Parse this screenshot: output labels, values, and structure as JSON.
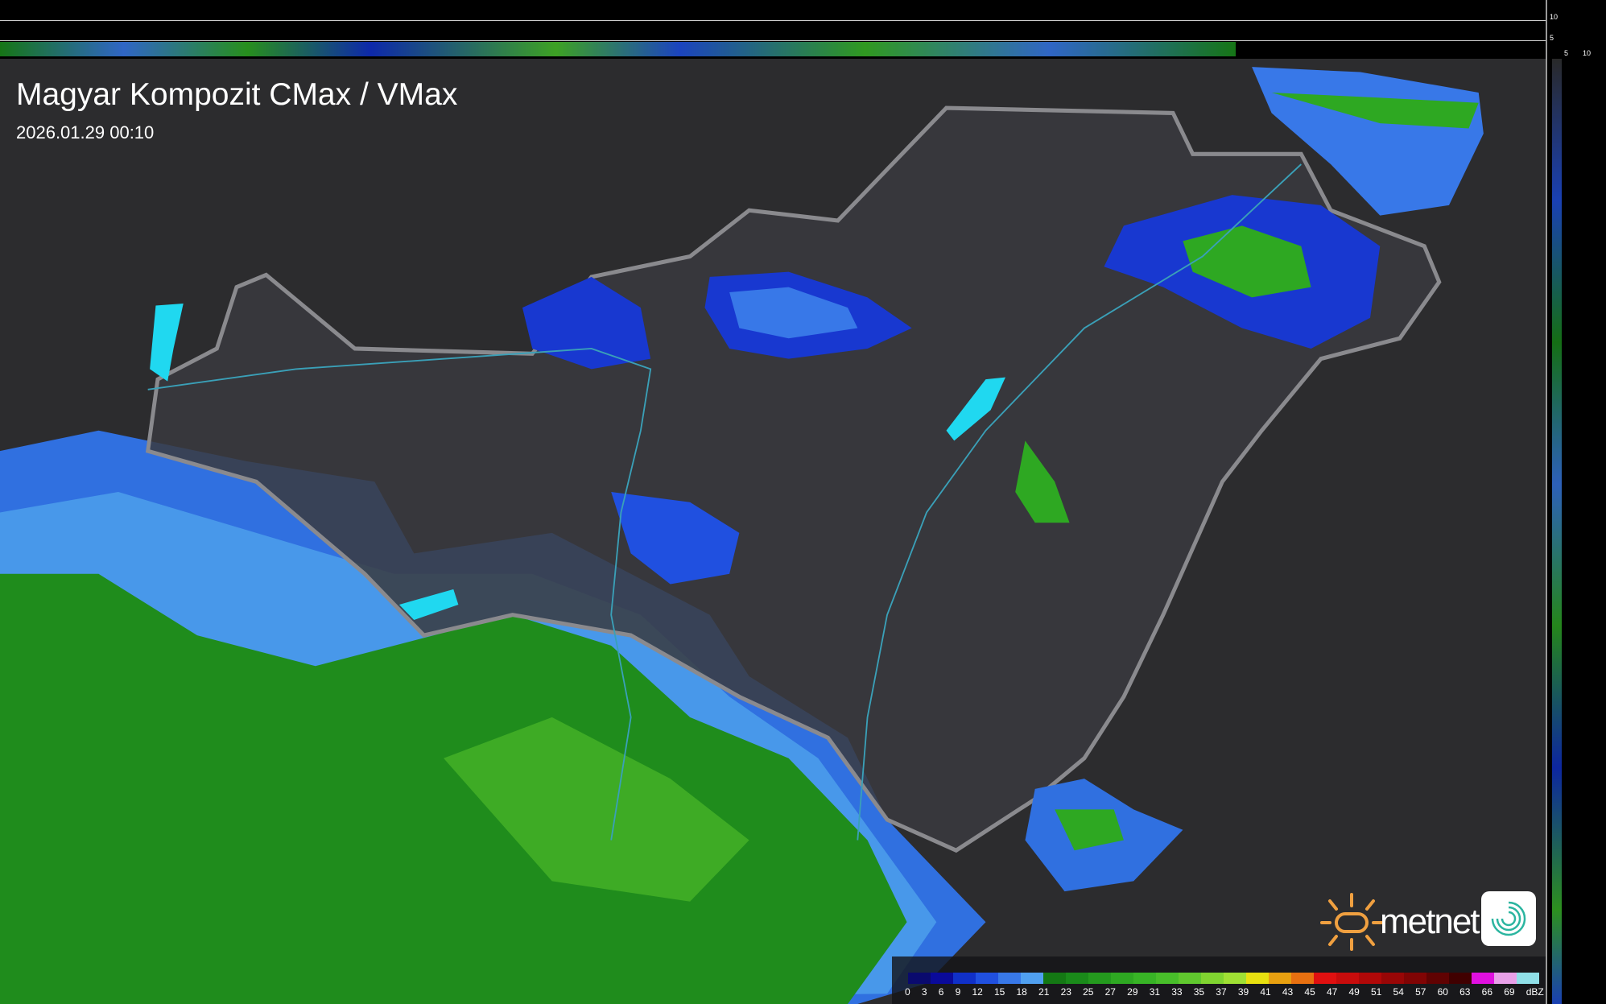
{
  "header": {
    "title": "Magyar Kompozit CMax / VMax",
    "timestamp": "2026.01.29 00:10"
  },
  "scale": {
    "vertical_ticks": [
      "10",
      "5"
    ],
    "horizontal_ticks": [
      "5",
      "10"
    ]
  },
  "legend": {
    "unit": "dBZ",
    "labels": [
      "0",
      "3",
      "6",
      "9",
      "12",
      "15",
      "18",
      "21",
      "23",
      "25",
      "27",
      "29",
      "31",
      "33",
      "35",
      "37",
      "39",
      "41",
      "43",
      "45",
      "47",
      "49",
      "51",
      "54",
      "57",
      "60",
      "63",
      "66",
      "69"
    ],
    "colors": [
      "#0a0a6e",
      "#0a0a9a",
      "#1030c8",
      "#2050e0",
      "#3878e8",
      "#50a0f0",
      "#147814",
      "#1a8a1a",
      "#249a1e",
      "#2ea822",
      "#38b426",
      "#48be2a",
      "#60c82e",
      "#80d430",
      "#a0e034",
      "#e8e010",
      "#e8a010",
      "#e87010",
      "#e01010",
      "#c80c0c",
      "#b00808",
      "#980606",
      "#800404",
      "#600202",
      "#400000",
      "#e010e0",
      "#e8a0e8",
      "#90e0e8"
    ]
  },
  "branding": {
    "logo_text": "metnet",
    "logo_icon": "sun-icon",
    "app_icon": "radar-swirl-icon",
    "accent": "#f0a040"
  }
}
